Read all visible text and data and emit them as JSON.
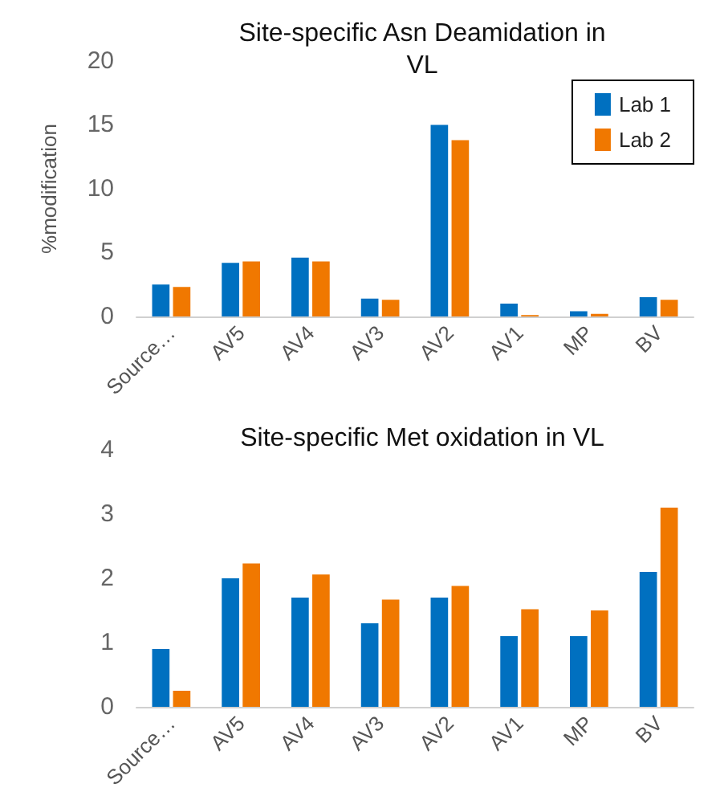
{
  "chart_data": [
    {
      "type": "bar",
      "title": "Site-specific Asn Deamidation in\nVL",
      "ylabel": "%modification",
      "categories": [
        "Source…",
        "AV5",
        "AV4",
        "AV3",
        "AV2",
        "AV1",
        "MP",
        "BV"
      ],
      "series": [
        {
          "name": "Lab 1",
          "color": "#0070c0",
          "values": [
            2.5,
            4.2,
            4.6,
            1.4,
            15,
            1.0,
            0.4,
            1.5
          ]
        },
        {
          "name": "Lab 2",
          "color": "#f07800",
          "values": [
            2.3,
            4.3,
            4.3,
            1.3,
            13.8,
            0.1,
            0.2,
            1.3
          ]
        }
      ],
      "ylim": [
        0,
        20
      ],
      "yticks": [
        0,
        5,
        10,
        15,
        20
      ],
      "grid": false,
      "legend": "top right"
    },
    {
      "type": "bar",
      "title": "Site-specific Met oxidation in VL",
      "categories": [
        "Source…",
        "AV5",
        "AV4",
        "AV3",
        "AV2",
        "AV1",
        "MP",
        "BV"
      ],
      "series": [
        {
          "color": "#0070c0",
          "values": [
            0.9,
            2.0,
            1.7,
            1.3,
            1.7,
            1.1,
            1.1,
            2.1
          ]
        },
        {
          "color": "#f07800",
          "values": [
            0.25,
            2.23,
            2.06,
            1.67,
            1.88,
            1.52,
            1.5,
            3.1
          ]
        }
      ],
      "ylim": [
        0,
        4
      ],
      "yticks": [
        0,
        1,
        2,
        3,
        4
      ],
      "grid": false
    }
  ]
}
